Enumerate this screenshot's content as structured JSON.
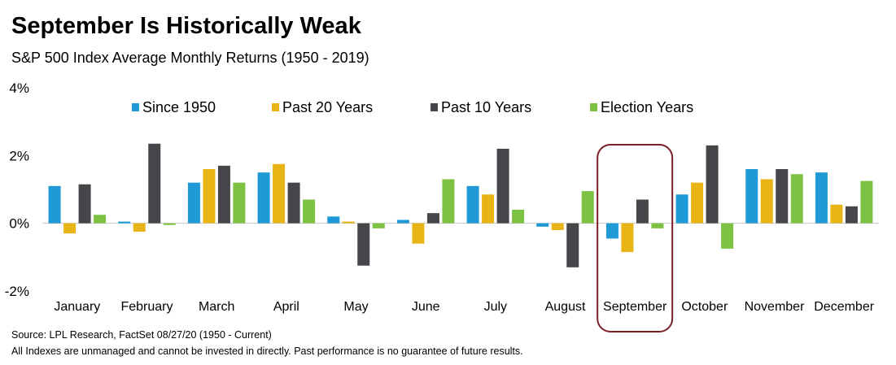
{
  "header": {
    "title": "September Is Historically Weak",
    "subtitle": "S&P 500 Index Average Monthly Returns (1950 - 2019)"
  },
  "footer": {
    "source": "Source: LPL Research, FactSet 08/27/20 (1950 - Current)",
    "disclaimer": "All Indexes are unmanaged and cannot be invested in directly. Past performance is no guarantee of future results."
  },
  "colors": {
    "since_1950": "#1f9ad6",
    "past_20": "#e8b416",
    "past_10": "#45464a",
    "election": "#7dc242",
    "highlight_box": "#7a1f26",
    "zero_line": "#c8c8c8"
  },
  "chart_data": {
    "type": "bar",
    "title": "September Is Historically Weak",
    "subtitle": "S&P 500 Index Average Monthly Returns (1950 - 2019)",
    "xlabel": "",
    "ylabel": "",
    "ylim": [
      -2,
      4
    ],
    "yticks": [
      "4%",
      "2%",
      "0%",
      "-2%"
    ],
    "ytick_values": [
      4,
      2,
      0,
      -2
    ],
    "legend_position": "top",
    "grid": false,
    "highlight_category": "September",
    "categories": [
      "January",
      "February",
      "March",
      "April",
      "May",
      "June",
      "July",
      "August",
      "September",
      "October",
      "November",
      "December"
    ],
    "series": [
      {
        "name": "Since 1950",
        "color": "#1f9ad6",
        "values": [
          1.1,
          0.05,
          1.2,
          1.5,
          0.2,
          0.1,
          1.1,
          -0.1,
          -0.45,
          0.85,
          1.6,
          1.5
        ]
      },
      {
        "name": "Past 20 Years",
        "color": "#e8b416",
        "values": [
          -0.3,
          -0.25,
          1.6,
          1.75,
          0.05,
          -0.6,
          0.85,
          -0.2,
          -0.85,
          1.2,
          1.3,
          0.55
        ]
      },
      {
        "name": "Past 10 Years",
        "color": "#45464a",
        "values": [
          1.15,
          2.35,
          1.7,
          1.2,
          -1.25,
          0.3,
          2.2,
          -1.3,
          0.7,
          2.3,
          1.6,
          0.5
        ]
      },
      {
        "name": "Election Years",
        "color": "#7dc242",
        "values": [
          0.25,
          -0.05,
          1.2,
          0.7,
          -0.15,
          1.3,
          0.4,
          0.95,
          -0.15,
          -0.75,
          1.45,
          1.25
        ]
      }
    ]
  }
}
